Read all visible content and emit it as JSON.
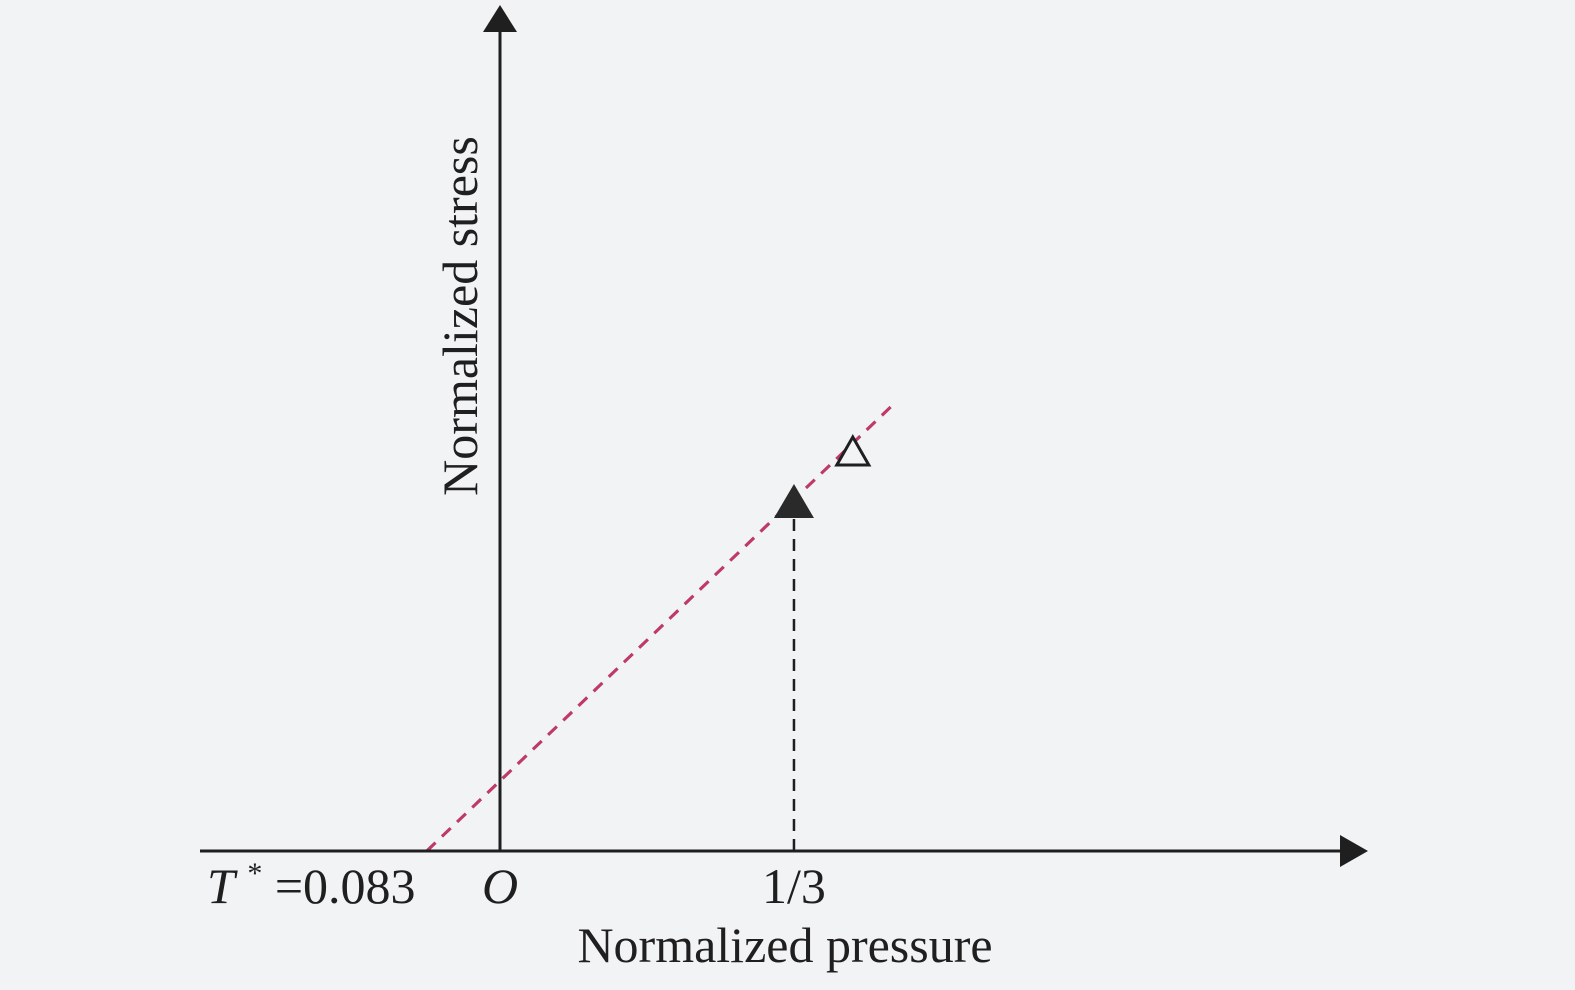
{
  "chart_data": {
    "type": "line",
    "xlabel": "Normalized pressure",
    "ylabel": "Normalized stress",
    "origin_label": "O",
    "x_intercept_label": {
      "symbol": "T",
      "superscript": "*",
      "text": "=0.083",
      "value": -0.083
    },
    "tick_labels": [
      {
        "text": "1/3",
        "value": 0.3333
      }
    ],
    "xlim": [
      -0.1,
      0.6
    ],
    "ylim": [
      0,
      0.48
    ],
    "series": [
      {
        "style": "dashed",
        "colors": [
          "#d6336c",
          "#555555"
        ],
        "x": [
          -0.083,
          0.45
        ],
        "y": [
          0,
          0.45
        ]
      }
    ],
    "markers": [
      {
        "shape": "filled-triangle",
        "x": 0.3333,
        "y": 0.35
      },
      {
        "shape": "open-triangle",
        "x": 0.4,
        "y": 0.4
      }
    ],
    "guide_lines": [
      {
        "style": "dashed",
        "color": "#1f1f1f",
        "x": 0.3333,
        "from_y": 0,
        "to_y": 0.35
      }
    ],
    "grid": false,
    "legend": "none",
    "colors": {
      "axis": "#1f1f1f",
      "line_primary": "#d6336c",
      "line_secondary": "#555555",
      "background": "#f2f3f5"
    }
  }
}
